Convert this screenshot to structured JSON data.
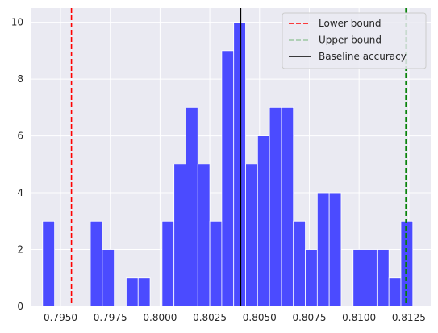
{
  "chart_data": {
    "type": "bar",
    "subtype": "histogram",
    "title": "",
    "xlabel": "",
    "ylabel": "",
    "xlim": [
      0.7935,
      0.8136
    ],
    "ylim": [
      0,
      10.5
    ],
    "grid": true,
    "background": "#eaeaf2",
    "bar_color": "#4b4bff",
    "bin_width": 0.0006,
    "bins": [
      {
        "left": 0.7941,
        "count": 3
      },
      {
        "left": 0.7947,
        "count": 0
      },
      {
        "left": 0.7953,
        "count": 0
      },
      {
        "left": 0.7959,
        "count": 0
      },
      {
        "left": 0.7965,
        "count": 3
      },
      {
        "left": 0.7971,
        "count": 2
      },
      {
        "left": 0.7977,
        "count": 0
      },
      {
        "left": 0.7983,
        "count": 1
      },
      {
        "left": 0.7989,
        "count": 1
      },
      {
        "left": 0.7995,
        "count": 0
      },
      {
        "left": 0.8001,
        "count": 3
      },
      {
        "left": 0.8007,
        "count": 5
      },
      {
        "left": 0.8013,
        "count": 7
      },
      {
        "left": 0.8019,
        "count": 5
      },
      {
        "left": 0.8025,
        "count": 3
      },
      {
        "left": 0.8031,
        "count": 9
      },
      {
        "left": 0.8037,
        "count": 10
      },
      {
        "left": 0.8043,
        "count": 5
      },
      {
        "left": 0.8049,
        "count": 6
      },
      {
        "left": 0.8055,
        "count": 7
      },
      {
        "left": 0.8061,
        "count": 7
      },
      {
        "left": 0.8067,
        "count": 3
      },
      {
        "left": 0.8073,
        "count": 2
      },
      {
        "left": 0.8079,
        "count": 4
      },
      {
        "left": 0.8085,
        "count": 4
      },
      {
        "left": 0.8091,
        "count": 0
      },
      {
        "left": 0.8097,
        "count": 2
      },
      {
        "left": 0.8103,
        "count": 2
      },
      {
        "left": 0.8109,
        "count": 2
      },
      {
        "left": 0.8115,
        "count": 1
      },
      {
        "left": 0.8121,
        "count": 3
      }
    ],
    "xticks": [
      0.795,
      0.7975,
      0.8,
      0.8025,
      0.805,
      0.8075,
      0.81,
      0.8125
    ],
    "xtick_labels": [
      "0.7950",
      "0.7975",
      "0.8000",
      "0.8025",
      "0.8050",
      "0.8075",
      "0.8100",
      "0.8125"
    ],
    "yticks": [
      0,
      2,
      4,
      6,
      8,
      10
    ],
    "ytick_labels": [
      "0",
      "2",
      "4",
      "6",
      "8",
      "10"
    ],
    "vlines": [
      {
        "name": "Lower bound",
        "x": 0.79555,
        "color": "#ff0000",
        "style": "dashed"
      },
      {
        "name": "Upper bound",
        "x": 0.81235,
        "color": "#008000",
        "style": "dashed"
      },
      {
        "name": "Baseline accuracy",
        "x": 0.80405,
        "color": "#000000",
        "style": "solid"
      }
    ],
    "legend": {
      "position": "upper right",
      "entries": [
        "Lower bound",
        "Upper bound",
        "Baseline accuracy"
      ]
    }
  }
}
